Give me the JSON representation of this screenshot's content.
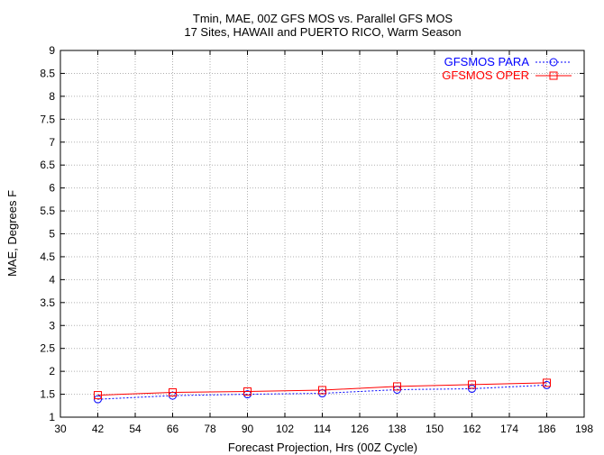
{
  "chart_data": {
    "type": "line",
    "title": "Tmin, MAE, 00Z GFS MOS vs. Parallel GFS MOS",
    "subtitle": "17 Sites, HAWAII and PUERTO RICO, Warm Season",
    "xlabel": "Forecast Projection, Hrs (00Z Cycle)",
    "ylabel": "MAE, Degrees F",
    "xlim": [
      30,
      198
    ],
    "ylim": [
      1,
      9
    ],
    "xticks": [
      30,
      42,
      54,
      66,
      78,
      90,
      102,
      114,
      126,
      138,
      150,
      162,
      174,
      186,
      198
    ],
    "yticks": [
      1,
      1.5,
      2,
      2.5,
      3,
      3.5,
      4,
      4.5,
      5,
      5.5,
      6,
      6.5,
      7,
      7.5,
      8,
      8.5,
      9
    ],
    "grid": true,
    "legend_position": "top-right",
    "x": [
      42,
      66,
      90,
      114,
      138,
      162,
      186
    ],
    "series": [
      {
        "name": "GFSMOS PARA",
        "color": "#0000ff",
        "marker": "circle",
        "line": "dotted",
        "values": [
          1.39,
          1.47,
          1.5,
          1.52,
          1.6,
          1.62,
          1.7
        ]
      },
      {
        "name": "GFSMOS OPER",
        "color": "#ff0000",
        "marker": "square",
        "line": "solid",
        "values": [
          1.48,
          1.54,
          1.56,
          1.59,
          1.67,
          1.71,
          1.75
        ]
      }
    ]
  }
}
